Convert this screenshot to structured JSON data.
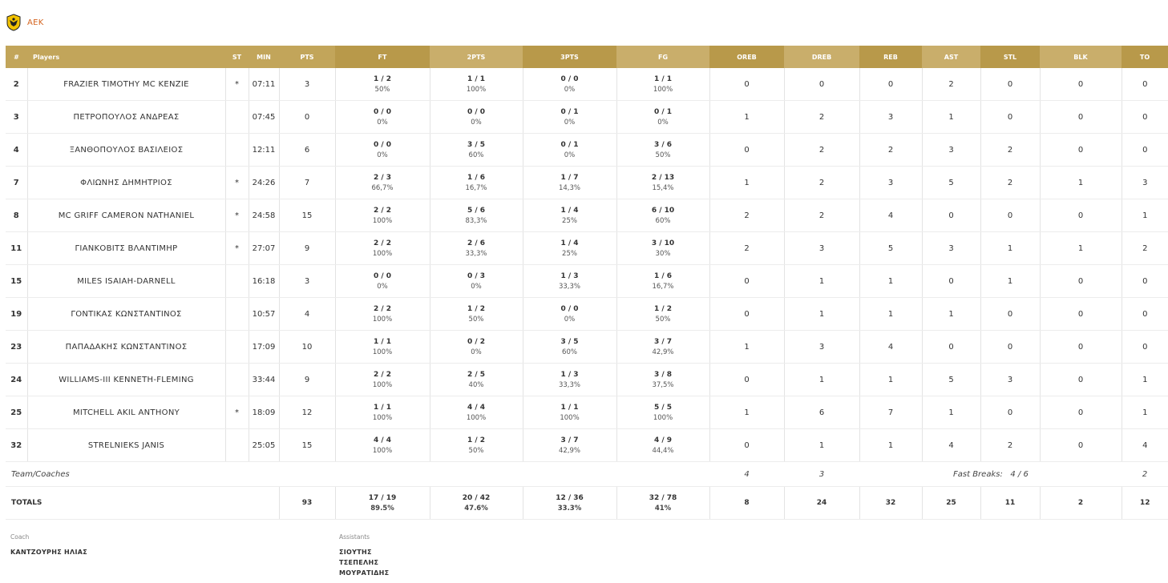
{
  "team": {
    "name": "AEK",
    "logo_icon": "aek-eagle-logo-icon"
  },
  "headers": [
    "#",
    "Players",
    "ST",
    "MIN",
    "PTS",
    "FT",
    "2PTS",
    "3PTS",
    "FG",
    "OREB",
    "DREB",
    "REB",
    "AST",
    "STL",
    "BLK",
    "TO"
  ],
  "players": [
    {
      "num": "2",
      "name": "FRAZIER TIMOTHY MC KENZIE",
      "st": "*",
      "min": "07:11",
      "pts": "3",
      "ft": "1 / 2",
      "ft_pct": "50%",
      "p2": "1 / 1",
      "p2_pct": "100%",
      "p3": "0 / 0",
      "p3_pct": "0%",
      "fg": "1 / 1",
      "fg_pct": "100%",
      "oreb": "0",
      "dreb": "0",
      "reb": "0",
      "ast": "2",
      "stl": "0",
      "blk": "0",
      "to": "0"
    },
    {
      "num": "3",
      "name": "ΠΕΤΡΟΠΟΥΛΟΣ ΑΝΔΡΕΑΣ",
      "st": "",
      "min": "07:45",
      "pts": "0",
      "ft": "0 / 0",
      "ft_pct": "0%",
      "p2": "0 / 0",
      "p2_pct": "0%",
      "p3": "0 / 1",
      "p3_pct": "0%",
      "fg": "0 / 1",
      "fg_pct": "0%",
      "oreb": "1",
      "dreb": "2",
      "reb": "3",
      "ast": "1",
      "stl": "0",
      "blk": "0",
      "to": "0"
    },
    {
      "num": "4",
      "name": "ΞΑΝΘΟΠΟΥΛΟΣ ΒΑΣΙΛΕΙΟΣ",
      "st": "",
      "min": "12:11",
      "pts": "6",
      "ft": "0 / 0",
      "ft_pct": "0%",
      "p2": "3 / 5",
      "p2_pct": "60%",
      "p3": "0 / 1",
      "p3_pct": "0%",
      "fg": "3 / 6",
      "fg_pct": "50%",
      "oreb": "0",
      "dreb": "2",
      "reb": "2",
      "ast": "3",
      "stl": "2",
      "blk": "0",
      "to": "0"
    },
    {
      "num": "7",
      "name": "ΦΛΙΩΝΗΣ ΔΗΜΗΤΡΙΟΣ",
      "st": "*",
      "min": "24:26",
      "pts": "7",
      "ft": "2 / 3",
      "ft_pct": "66,7%",
      "p2": "1 / 6",
      "p2_pct": "16,7%",
      "p3": "1 / 7",
      "p3_pct": "14,3%",
      "fg": "2 / 13",
      "fg_pct": "15,4%",
      "oreb": "1",
      "dreb": "2",
      "reb": "3",
      "ast": "5",
      "stl": "2",
      "blk": "1",
      "to": "3"
    },
    {
      "num": "8",
      "name": "MC GRIFF CAMERON NATHANIEL",
      "st": "*",
      "min": "24:58",
      "pts": "15",
      "ft": "2 / 2",
      "ft_pct": "100%",
      "p2": "5 / 6",
      "p2_pct": "83,3%",
      "p3": "1 / 4",
      "p3_pct": "25%",
      "fg": "6 / 10",
      "fg_pct": "60%",
      "oreb": "2",
      "dreb": "2",
      "reb": "4",
      "ast": "0",
      "stl": "0",
      "blk": "0",
      "to": "1"
    },
    {
      "num": "11",
      "name": "ΓΙΑΝΚΟΒΙΤΣ ΒΛΑΝΤΙΜΗΡ",
      "st": "*",
      "min": "27:07",
      "pts": "9",
      "ft": "2 / 2",
      "ft_pct": "100%",
      "p2": "2 / 6",
      "p2_pct": "33,3%",
      "p3": "1 / 4",
      "p3_pct": "25%",
      "fg": "3 / 10",
      "fg_pct": "30%",
      "oreb": "2",
      "dreb": "3",
      "reb": "5",
      "ast": "3",
      "stl": "1",
      "blk": "1",
      "to": "2"
    },
    {
      "num": "15",
      "name": "MILES ISAIAH-DARNELL",
      "st": "",
      "min": "16:18",
      "pts": "3",
      "ft": "0 / 0",
      "ft_pct": "0%",
      "p2": "0 / 3",
      "p2_pct": "0%",
      "p3": "1 / 3",
      "p3_pct": "33,3%",
      "fg": "1 / 6",
      "fg_pct": "16,7%",
      "oreb": "0",
      "dreb": "1",
      "reb": "1",
      "ast": "0",
      "stl": "1",
      "blk": "0",
      "to": "0"
    },
    {
      "num": "19",
      "name": "ΓΟΝΤΙΚΑΣ ΚΩΝΣΤΑΝΤΙΝΟΣ",
      "st": "",
      "min": "10:57",
      "pts": "4",
      "ft": "2 / 2",
      "ft_pct": "100%",
      "p2": "1 / 2",
      "p2_pct": "50%",
      "p3": "0 / 0",
      "p3_pct": "0%",
      "fg": "1 / 2",
      "fg_pct": "50%",
      "oreb": "0",
      "dreb": "1",
      "reb": "1",
      "ast": "1",
      "stl": "0",
      "blk": "0",
      "to": "0"
    },
    {
      "num": "23",
      "name": "ΠΑΠΑΔΑΚΗΣ ΚΩΝΣΤΑΝΤΙΝΟΣ",
      "st": "",
      "min": "17:09",
      "pts": "10",
      "ft": "1 / 1",
      "ft_pct": "100%",
      "p2": "0 / 2",
      "p2_pct": "0%",
      "p3": "3 / 5",
      "p3_pct": "60%",
      "fg": "3 / 7",
      "fg_pct": "42,9%",
      "oreb": "1",
      "dreb": "3",
      "reb": "4",
      "ast": "0",
      "stl": "0",
      "blk": "0",
      "to": "0"
    },
    {
      "num": "24",
      "name": "WILLIAMS-III KENNETH-FLEMING",
      "st": "",
      "min": "33:44",
      "pts": "9",
      "ft": "2 / 2",
      "ft_pct": "100%",
      "p2": "2 / 5",
      "p2_pct": "40%",
      "p3": "1 / 3",
      "p3_pct": "33,3%",
      "fg": "3 / 8",
      "fg_pct": "37,5%",
      "oreb": "0",
      "dreb": "1",
      "reb": "1",
      "ast": "5",
      "stl": "3",
      "blk": "0",
      "to": "1"
    },
    {
      "num": "25",
      "name": "MITCHELL AKIL ANTHONY",
      "st": "*",
      "min": "18:09",
      "pts": "12",
      "ft": "1 / 1",
      "ft_pct": "100%",
      "p2": "4 / 4",
      "p2_pct": "100%",
      "p3": "1 / 1",
      "p3_pct": "100%",
      "fg": "5 / 5",
      "fg_pct": "100%",
      "oreb": "1",
      "dreb": "6",
      "reb": "7",
      "ast": "1",
      "stl": "0",
      "blk": "0",
      "to": "1"
    },
    {
      "num": "32",
      "name": "STRELNIEKS JANIS",
      "st": "",
      "min": "25:05",
      "pts": "15",
      "ft": "4 / 4",
      "ft_pct": "100%",
      "p2": "1 / 2",
      "p2_pct": "50%",
      "p3": "3 / 7",
      "p3_pct": "42,9%",
      "fg": "4 / 9",
      "fg_pct": "44,4%",
      "oreb": "0",
      "dreb": "1",
      "reb": "1",
      "ast": "4",
      "stl": "2",
      "blk": "0",
      "to": "4"
    }
  ],
  "team_row": {
    "label": "Team/Coaches",
    "oreb": "4",
    "dreb": "3",
    "fast_breaks_label": "Fast Breaks:",
    "fast_breaks": "4 / 6",
    "to": "2"
  },
  "totals": {
    "label": "TOTALS",
    "pts": "93",
    "ft": "17 / 19",
    "ft_pct": "89.5%",
    "p2": "20 / 42",
    "p2_pct": "47.6%",
    "p3": "12 / 36",
    "p3_pct": "33.3%",
    "fg": "32 / 78",
    "fg_pct": "41%",
    "oreb": "8",
    "dreb": "24",
    "reb": "32",
    "ast": "25",
    "stl": "11",
    "blk": "2",
    "to": "12"
  },
  "coach": {
    "label": "Coach",
    "name": "ΚΑΝΤΖΟΥΡΗΣ ΗΛΙΑΣ"
  },
  "assistants": {
    "label": "Assistants",
    "names": [
      "ΣΙΟΥΤΗΣ",
      "ΤΣΕΠΕΛΗΣ",
      "ΜΟΥΡΑΤΙΔΗΣ"
    ]
  },
  "colors": {
    "header_gold": "#c2a55a",
    "team_orange": "#d4631e"
  }
}
